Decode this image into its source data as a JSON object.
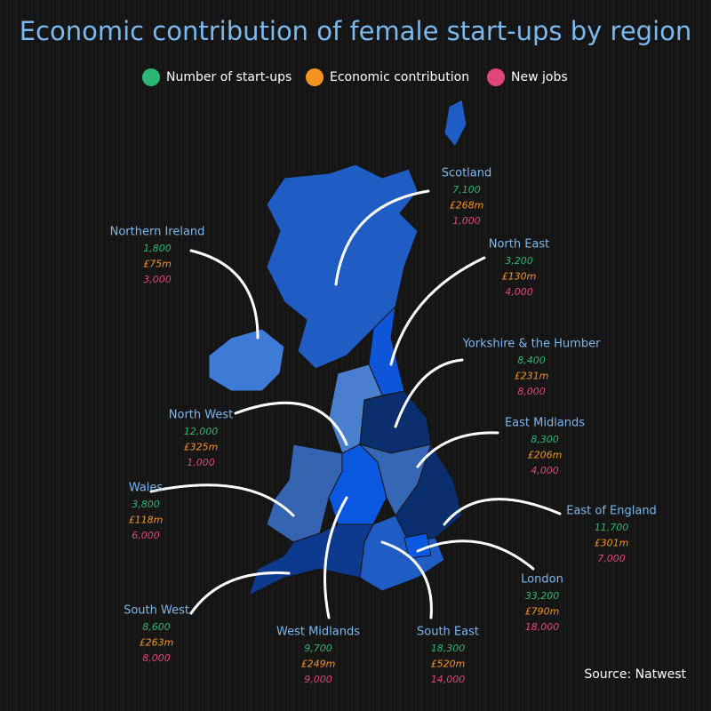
{
  "header": {
    "title": "Economic contribution of female start-ups by region"
  },
  "legend": [
    {
      "label": "Number of start-ups",
      "color": "#2bb673"
    },
    {
      "label": "Economic contribution",
      "color": "#f7941d"
    },
    {
      "label": "New jobs",
      "color": "#e0457b"
    }
  ],
  "regions": [
    {
      "name": "Scotland",
      "startups": "7,100",
      "contribution": "£268m",
      "jobs": "1,000"
    },
    {
      "name": "North East",
      "startups": "3,200",
      "contribution": "£130m",
      "jobs": "4,000"
    },
    {
      "name": "Yorkshire & the Humber",
      "startups": "8,400",
      "contribution": "£231m",
      "jobs": "8,000"
    },
    {
      "name": "East Midlands",
      "startups": "8,300",
      "contribution": "£206m",
      "jobs": "4,000"
    },
    {
      "name": "East of England",
      "startups": "11,700",
      "contribution": "£301m",
      "jobs": "7,000"
    },
    {
      "name": "London",
      "startups": "33,200",
      "contribution": "£790m",
      "jobs": "18,000"
    },
    {
      "name": "South East",
      "startups": "18,300",
      "contribution": "£520m",
      "jobs": "14,000"
    },
    {
      "name": "West Midlands",
      "startups": "9,700",
      "contribution": "£249m",
      "jobs": "9,000"
    },
    {
      "name": "South West",
      "startups": "8,600",
      "contribution": "£263m",
      "jobs": "8,000"
    },
    {
      "name": "Wales",
      "startups": "3,800",
      "contribution": "£118m",
      "jobs": "6,000"
    },
    {
      "name": "North West",
      "startups": "12,000",
      "contribution": "£325m",
      "jobs": "1,000"
    },
    {
      "name": "Northern Ireland",
      "startups": "1,800",
      "contribution": "£75m",
      "jobs": "3,000"
    }
  ],
  "footer": {
    "source": "Source: Natwest"
  }
}
